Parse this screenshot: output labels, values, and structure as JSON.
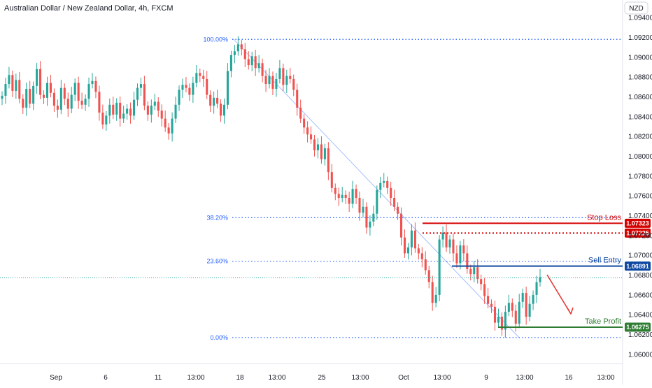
{
  "chart_data": {
    "type": "candlestick",
    "title": "Australian Dollar / New Zealand Dollar, 4h, FXCM",
    "currency_label": "NZD",
    "y_axis": {
      "ticks": [
        "1.09400",
        "1.09200",
        "1.09000",
        "1.08800",
        "1.08600",
        "1.08400",
        "1.08200",
        "1.08000",
        "1.07800",
        "1.07600",
        "1.07400",
        "1.07200",
        "1.07000",
        "1.06800",
        "1.06600",
        "1.06400",
        "1.06200",
        "1.06000"
      ],
      "min": 1.0595,
      "max": 1.0945
    },
    "x_axis": {
      "ticks": [
        "Sep",
        "6",
        "11",
        "13:00",
        "18",
        "13:00",
        "25",
        "13:00",
        "Oct",
        "13:00",
        "9",
        "13:00",
        "16",
        "13:00"
      ]
    },
    "fibonacci": [
      {
        "label": "100.00%",
        "value": 1.0918
      },
      {
        "label": "38.20%",
        "value": 1.0738
      },
      {
        "label": "23.60%",
        "value": 1.0694
      },
      {
        "label": "0.00%",
        "value": 1.0617
      }
    ],
    "levels": [
      {
        "name": "Stop Loss",
        "value": 1.07323,
        "badge": "1.07323",
        "color": "#d50000"
      },
      {
        "name": "",
        "value": 1.07225,
        "badge": "1.07225",
        "color": "#d50000"
      },
      {
        "name": "Sell Entry",
        "value": 1.06891,
        "badge": "1.06891",
        "color": "#0d47a1"
      },
      {
        "name": "Take Profit",
        "value": 1.06275,
        "badge": "1.06275",
        "color": "#2e7d32"
      }
    ],
    "current_price": 1.06775,
    "colors": {
      "up": "#26a69a",
      "down": "#ef5350",
      "fib": "#2962ff",
      "arrow": "#e53935"
    },
    "closes": [
      1.0861,
      1.0873,
      1.0882,
      1.0866,
      1.0877,
      1.0858,
      1.0849,
      1.0868,
      1.0853,
      1.0871,
      1.0888,
      1.0862,
      1.0859,
      1.0874,
      1.0864,
      1.0851,
      1.0847,
      1.0869,
      1.0858,
      1.0848,
      1.0862,
      1.0874,
      1.0856,
      1.0852,
      1.0858,
      1.0873,
      1.0876,
      1.0865,
      1.0844,
      1.0832,
      1.0841,
      1.0852,
      1.0842,
      1.0854,
      1.0838,
      1.0843,
      1.0848,
      1.0841,
      1.0857,
      1.0869,
      1.0873,
      1.0851,
      1.0842,
      1.0851,
      1.0855,
      1.0846,
      1.0838,
      1.0829,
      1.0823,
      1.0838,
      1.0852,
      1.0867,
      1.0872,
      1.0869,
      1.0862,
      1.0874,
      1.0884,
      1.0881,
      1.0878,
      1.0862,
      1.0851,
      1.0859,
      1.0853,
      1.0841,
      1.0852,
      1.0886,
      1.0902,
      1.0906,
      1.0913,
      1.0908,
      1.0898,
      1.0892,
      1.0901,
      1.0889,
      1.0894,
      1.0881,
      1.0873,
      1.0881,
      1.0868,
      1.0878,
      1.0889,
      1.0872,
      1.0881,
      1.0878,
      1.0867,
      1.0849,
      1.0838,
      1.0829,
      1.0822,
      1.0817,
      1.0806,
      1.0812,
      1.0797,
      1.0808,
      1.0784,
      1.0768,
      1.0762,
      1.0758,
      1.0761,
      1.0758,
      1.0752,
      1.0767,
      1.0758,
      1.0743,
      1.0749,
      1.0728,
      1.0734,
      1.0742,
      1.0766,
      1.0773,
      1.0775,
      1.0768,
      1.0758,
      1.0749,
      1.0742,
      1.0718,
      1.0702,
      1.0708,
      1.0725,
      1.0707,
      1.0702,
      1.0696,
      1.0685,
      1.0673,
      1.0652,
      1.066,
      1.0716,
      1.0723,
      1.0708,
      1.0716,
      1.0702,
      1.0692,
      1.071,
      1.0702,
      1.0686,
      1.0681,
      1.0688,
      1.0676,
      1.0671,
      1.0659,
      1.0651,
      1.0648,
      1.0632,
      1.0638,
      1.0625,
      1.0643,
      1.0652,
      1.0644,
      1.0631,
      1.0653,
      1.0662,
      1.0638,
      1.0651,
      1.066,
      1.0673,
      1.0678
    ]
  }
}
